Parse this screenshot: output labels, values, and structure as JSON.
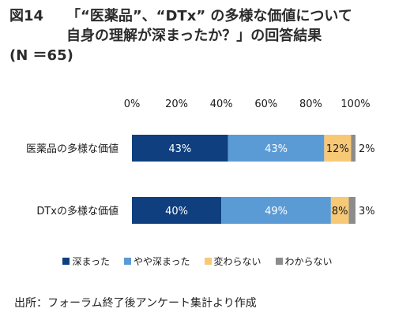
{
  "figure": {
    "label": "図14",
    "title_lines": [
      "「“医薬品”、“DTx” の多様な価値について",
      "自身の理解が深まったか？」の回答結果",
      "(N ＝65)"
    ]
  },
  "chart_data": {
    "type": "bar",
    "orientation": "horizontal-stacked-100",
    "xlim": [
      0,
      100
    ],
    "x_ticks": [
      "0%",
      "20%",
      "40%",
      "60%",
      "80%",
      "100%"
    ],
    "categories": [
      "医薬品の多様な価値",
      "DTxの多様な価値"
    ],
    "series": [
      {
        "name": "深まった",
        "values": [
          43,
          40
        ],
        "labels": [
          "43%",
          "40%"
        ],
        "color": "#0f3f7f",
        "label_color": "#ffffff"
      },
      {
        "name": "やや深まった",
        "values": [
          43,
          49
        ],
        "labels": [
          "43%",
          "49%"
        ],
        "color": "#5b9bd5",
        "label_color": "#ffffff"
      },
      {
        "name": "変わらない",
        "values": [
          12,
          8
        ],
        "labels": [
          "12%",
          "8%"
        ],
        "color": "#f7c977",
        "label_color": "#1a1a1a"
      },
      {
        "name": "わからない",
        "values": [
          2,
          3
        ],
        "labels": [
          "2%",
          "3%"
        ],
        "color": "#8c8c8c",
        "label_color": "#1a1a1a"
      }
    ],
    "legend_position": "bottom",
    "grid": false
  },
  "source": "出所：フォーラム終了後アンケート集計より作成"
}
